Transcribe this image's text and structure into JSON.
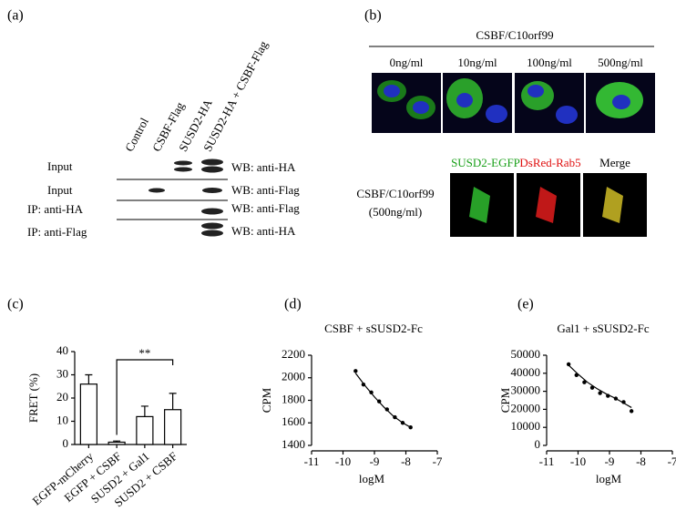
{
  "panel_a": {
    "label": "(a)",
    "lanes": [
      "Control",
      "CSBF-Flag",
      "SUSD2-HA",
      "SUSD2-HA + CSBF-Flag"
    ],
    "rows": [
      {
        "label": "Input",
        "wb": "WB: anti-HA"
      },
      {
        "label": "Input",
        "wb": "WB: anti-Flag"
      },
      {
        "label": "IP: anti-HA",
        "wb": "WB: anti-Flag"
      },
      {
        "label": "IP: anti-Flag",
        "wb": "WB: anti-HA"
      }
    ]
  },
  "panel_b": {
    "label": "(b)",
    "treatment": "CSBF/C10orf99",
    "doses": [
      "0ng/ml",
      "10ng/ml",
      "100ng/ml",
      "500ng/ml"
    ],
    "channels": [
      "SUSD2-EGFP",
      "DsRed-Rab5",
      "Merge"
    ],
    "lower_treatment": "CSBF/C10orf99",
    "lower_dose": "(500ng/ml)"
  },
  "chart_data": [
    {
      "type": "bar",
      "panel": "(c)",
      "ylabel": "FRET (%)",
      "categories": [
        "EGFP-mCherry",
        "EGFP + CSBF",
        "SUSD2 + Gal1",
        "SUSD2 + CSBF"
      ],
      "values": [
        26,
        1,
        12,
        15
      ],
      "errors": [
        4,
        0.5,
        4.5,
        7
      ],
      "ylim": [
        0,
        40
      ],
      "yticks": [
        0,
        10,
        20,
        30,
        40
      ],
      "annotation": "**",
      "color": "#ffffff"
    },
    {
      "type": "scatter",
      "panel": "(d)",
      "title": "CSBF + sSUSD2-Fc",
      "xlabel": "logM",
      "ylabel": "CPM",
      "x": [
        -9.6,
        -9.35,
        -9.1,
        -8.85,
        -8.6,
        -8.35,
        -8.1,
        -7.85
      ],
      "values": [
        2060,
        1940,
        1870,
        1790,
        1720,
        1650,
        1600,
        1560
      ],
      "fit_x": [
        -9.6,
        -9.3,
        -9.0,
        -8.7,
        -8.4,
        -8.1,
        -7.85
      ],
      "fit_values": [
        2040,
        1930,
        1830,
        1740,
        1660,
        1600,
        1560
      ],
      "xlim": [
        -11,
        -7
      ],
      "xticks": [
        -11,
        -10,
        -9,
        -8,
        -7
      ],
      "ylim": [
        1400,
        2200
      ],
      "yticks": [
        1400,
        1600,
        1800,
        2000,
        2200
      ],
      "color": "#000000"
    },
    {
      "type": "scatter",
      "panel": "(e)",
      "title": "Gal1 + sSUSD2-Fc",
      "xlabel": "logM",
      "ylabel": "CPM",
      "x": [
        -10.3,
        -10.05,
        -9.8,
        -9.55,
        -9.3,
        -9.05,
        -8.8,
        -8.55,
        -8.3
      ],
      "values": [
        45000,
        39000,
        35000,
        32000,
        29000,
        27500,
        26000,
        24000,
        19000
      ],
      "fit_x": [
        -10.3,
        -10.0,
        -9.7,
        -9.4,
        -9.1,
        -8.8,
        -8.5,
        -8.3
      ],
      "fit_values": [
        44500,
        39500,
        35000,
        31500,
        28500,
        26000,
        23000,
        21000
      ],
      "xlim": [
        -11,
        -7
      ],
      "xticks": [
        -11,
        -10,
        -9,
        -8,
        -7
      ],
      "ylim": [
        0,
        50000
      ],
      "yticks": [
        0,
        10000,
        20000,
        30000,
        40000,
        50000
      ],
      "color": "#000000"
    }
  ]
}
